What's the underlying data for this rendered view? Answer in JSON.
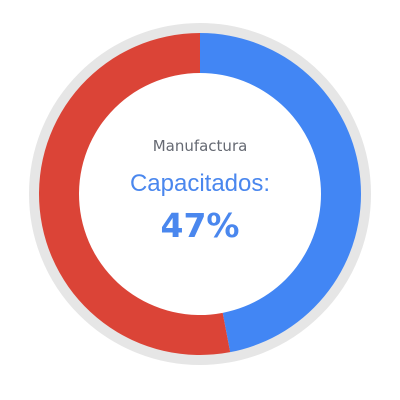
{
  "chart_data": {
    "type": "pie",
    "style": "donut",
    "category": "Manufactura",
    "center_label": "Capacitados:",
    "center_value_text": "47%",
    "slices": [
      {
        "value": 47,
        "color": "#4286f4"
      },
      {
        "value": 53,
        "color": "#db4437"
      }
    ],
    "track_color": "#e6e6e6"
  }
}
